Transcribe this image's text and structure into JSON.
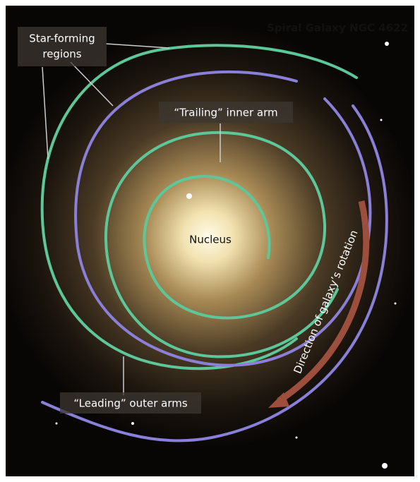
{
  "title": "Spiral Galaxy NGC 4622",
  "labels": {
    "star_forming": [
      "Star-forming",
      "regions"
    ],
    "trailing": "“Trailing” inner arm",
    "nucleus": "Nucleus",
    "rotation": "Direction of galaxy’s rotation",
    "leading": "“Leading” outer arms"
  }
}
